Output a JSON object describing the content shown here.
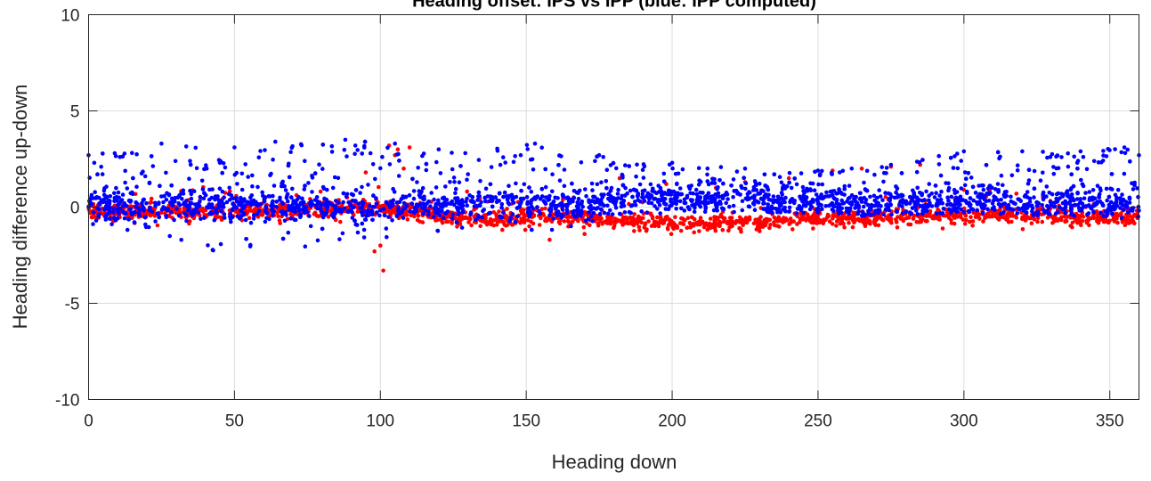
{
  "chart_data": {
    "type": "scatter",
    "title": "Heading offset: IPS vs IPP (blue: IPP computed)",
    "xlabel": "Heading down",
    "ylabel": "Heading difference up-down",
    "xlim": [
      0,
      360
    ],
    "ylim": [
      -10,
      10
    ],
    "xticks": [
      "0",
      "50",
      "100",
      "150",
      "200",
      "250",
      "300",
      "350"
    ],
    "yticks": [
      "-10",
      "-5",
      "0",
      "5",
      "10"
    ],
    "grid": true,
    "series": [
      {
        "color": "#ff0000",
        "trend": [
          [
            0,
            -0.25
          ],
          [
            20,
            -0.3
          ],
          [
            40,
            -0.25
          ],
          [
            60,
            -0.2
          ],
          [
            80,
            -0.1
          ],
          [
            95,
            -0.05
          ],
          [
            100,
            -0.1
          ],
          [
            115,
            -0.3
          ],
          [
            125,
            -0.6
          ],
          [
            140,
            -0.55
          ],
          [
            160,
            -0.45
          ],
          [
            175,
            -0.6
          ],
          [
            200,
            -0.9
          ],
          [
            225,
            -0.8
          ],
          [
            250,
            -0.6
          ],
          [
            275,
            -0.5
          ],
          [
            300,
            -0.45
          ],
          [
            325,
            -0.4
          ],
          [
            345,
            -0.55
          ],
          [
            360,
            -0.6
          ]
        ],
        "spread": 0.35,
        "outliers": [
          [
            101,
            -3.3
          ],
          [
            103,
            3.2
          ],
          [
            106,
            3.0
          ],
          [
            110,
            3.1
          ],
          [
            105,
            2.7
          ],
          [
            98,
            -2.3
          ],
          [
            100,
            -2.0
          ],
          [
            158,
            -1.7
          ],
          [
            170,
            -1.4
          ],
          [
            182,
            1.5
          ],
          [
            198,
            1.2
          ],
          [
            215,
            1.0
          ],
          [
            225,
            1.3
          ],
          [
            240,
            1.5
          ],
          [
            255,
            1.9
          ],
          [
            265,
            2.0
          ],
          [
            275,
            2.1
          ],
          [
            285,
            2.2
          ],
          [
            300,
            0.9
          ],
          [
            318,
            0.7
          ],
          [
            95,
            1.8
          ],
          [
            108,
            2.0
          ]
        ],
        "count": 1800
      },
      {
        "color": "#0000ff",
        "trend": [
          [
            0,
            0.05
          ],
          [
            20,
            0.1
          ],
          [
            40,
            0.1
          ],
          [
            60,
            0.0
          ],
          [
            80,
            -0.05
          ],
          [
            100,
            0.0
          ],
          [
            120,
            0.1
          ],
          [
            140,
            0.15
          ],
          [
            160,
            0.1
          ],
          [
            175,
            0.05
          ],
          [
            180,
            0.4
          ],
          [
            200,
            0.45
          ],
          [
            220,
            0.45
          ],
          [
            240,
            0.4
          ],
          [
            255,
            0.3
          ],
          [
            260,
            0.1
          ],
          [
            280,
            0.2
          ],
          [
            300,
            0.3
          ],
          [
            320,
            0.3
          ],
          [
            340,
            0.2
          ],
          [
            360,
            0.2
          ]
        ],
        "spread": 0.7,
        "upper": [
          [
            0,
            2.7
          ],
          [
            25,
            3.3
          ],
          [
            50,
            3.1
          ],
          [
            64,
            3.4
          ],
          [
            88,
            3.5
          ],
          [
            105,
            3.3
          ],
          [
            120,
            3.0
          ],
          [
            153,
            3.3
          ],
          [
            175,
            2.7
          ],
          [
            200,
            2.3
          ],
          [
            225,
            2.0
          ],
          [
            250,
            1.9
          ],
          [
            275,
            2.2
          ],
          [
            300,
            2.9
          ],
          [
            320,
            2.9
          ],
          [
            340,
            2.9
          ],
          [
            355,
            3.1
          ],
          [
            360,
            2.7
          ]
        ],
        "lower": [
          [
            0,
            -1.0
          ],
          [
            40,
            -2.4
          ],
          [
            50,
            -2.0
          ],
          [
            88,
            -2.5
          ],
          [
            100,
            -1.7
          ],
          [
            130,
            -1.5
          ],
          [
            160,
            -1.2
          ],
          [
            180,
            -0.5
          ],
          [
            200,
            -0.3
          ],
          [
            240,
            -0.3
          ],
          [
            260,
            -0.5
          ],
          [
            300,
            -0.3
          ],
          [
            360,
            -0.6
          ]
        ],
        "count": 2600
      }
    ]
  }
}
